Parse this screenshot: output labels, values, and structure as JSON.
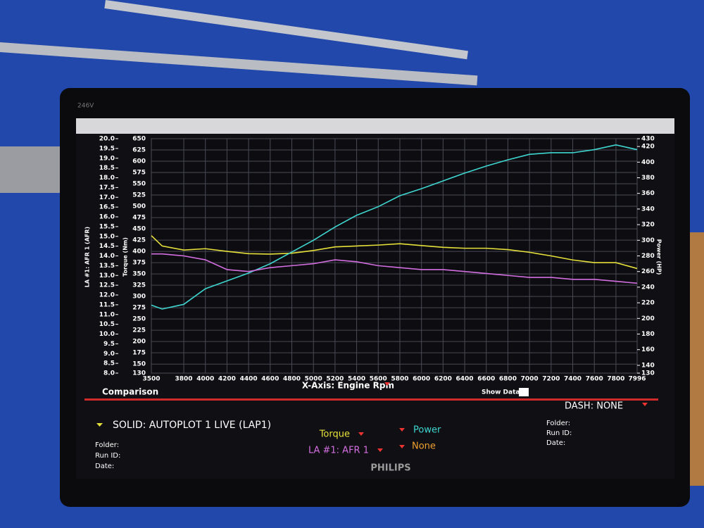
{
  "chart_data": {
    "type": "line",
    "xlabel": "X-Axis: Engine Rpm",
    "ylabel": "Torque (Nm)",
    "y2label": "Power (HP)",
    "y3label": "LA #1: AFR 1 (AFR)",
    "x": [
      3500,
      3600,
      3800,
      4000,
      4200,
      4400,
      4600,
      4800,
      5000,
      5200,
      5400,
      5600,
      5800,
      6000,
      6200,
      6400,
      6600,
      6800,
      7000,
      7200,
      7400,
      7600,
      7800,
      7996
    ],
    "xlim": [
      3500,
      7996
    ],
    "xticks": [
      3500,
      3800,
      4000,
      4200,
      4400,
      4600,
      4800,
      5000,
      5200,
      5400,
      5600,
      5800,
      6000,
      6200,
      6400,
      6600,
      6800,
      7000,
      7200,
      7400,
      7600,
      7800,
      7996
    ],
    "ylim": [
      130,
      650
    ],
    "yticks": [
      130,
      150,
      175,
      200,
      225,
      250,
      275,
      300,
      325,
      350,
      375,
      400,
      425,
      450,
      475,
      500,
      525,
      550,
      575,
      600,
      625,
      650
    ],
    "y2lim": [
      130,
      430
    ],
    "y2ticks": [
      130,
      140,
      160,
      180,
      200,
      220,
      240,
      260,
      280,
      300,
      320,
      340,
      360,
      380,
      400,
      420,
      430
    ],
    "y3lim": [
      8,
      20
    ],
    "y3ticks": [
      {
        "value": 8,
        "label": "8.0"
      },
      {
        "value": 8.5,
        "label": "8.5"
      },
      {
        "value": 9,
        "label": "9.0"
      },
      {
        "value": 9.5,
        "label": "9.5"
      },
      {
        "value": 10,
        "label": "10.0"
      },
      {
        "value": 10.5,
        "label": "10.5"
      },
      {
        "value": 11,
        "label": "11.0"
      },
      {
        "value": 11.5,
        "label": "11.5"
      },
      {
        "value": 12,
        "label": "12.0"
      },
      {
        "value": 12.5,
        "label": "12.5"
      },
      {
        "value": 13,
        "label": "13.0"
      },
      {
        "value": 13.5,
        "label": "13.5"
      },
      {
        "value": 14,
        "label": "14.0"
      },
      {
        "value": 14.5,
        "label": "14.5"
      },
      {
        "value": 15,
        "label": "15.0"
      },
      {
        "value": 15.5,
        "label": "15.5"
      },
      {
        "value": 16,
        "label": "16.0"
      },
      {
        "value": 16.5,
        "label": "16.5"
      },
      {
        "value": 17,
        "label": "17.0"
      },
      {
        "value": 17.5,
        "label": "17.5"
      },
      {
        "value": 18,
        "label": "18.0"
      },
      {
        "value": 18.5,
        "label": "18.5"
      },
      {
        "value": 19,
        "label": "19.0"
      },
      {
        "value": 19.5,
        "label": "19.5"
      },
      {
        "value": 20,
        "label": "20.0"
      }
    ],
    "grid": true,
    "series": [
      {
        "name": "Torque",
        "color": "#e6e03a",
        "axis": "y",
        "values": [
          435,
          412,
          403,
          406,
          400,
          395,
          394,
          396,
          402,
          410,
          412,
          414,
          417,
          413,
          409,
          407,
          407,
          404,
          398,
          390,
          381,
          375,
          375,
          362
        ]
      },
      {
        "name": "Power",
        "color": "#3fd6d0",
        "axis": "y2",
        "values": [
          217,
          212,
          218,
          238,
          248,
          258,
          270,
          285,
          300,
          317,
          332,
          343,
          357,
          366,
          376,
          386,
          395,
          403,
          410,
          412,
          412,
          416,
          422,
          416
        ]
      },
      {
        "name": "LA #1: AFR 1",
        "color": "#d36ee0",
        "axis": "y3",
        "values": [
          14.1,
          14.1,
          14.0,
          13.8,
          13.3,
          13.2,
          13.4,
          13.5,
          13.6,
          13.8,
          13.7,
          13.5,
          13.4,
          13.3,
          13.3,
          13.2,
          13.1,
          13.0,
          12.9,
          12.9,
          12.8,
          12.8,
          12.7,
          12.6
        ]
      }
    ]
  },
  "panel": {
    "comparison": "Comparison",
    "show_data": "Show Data",
    "dash": "DASH: NONE",
    "solid": "SOLID: AUTOPLOT 1 LIVE (LAP1)",
    "extra_channel": "None",
    "left_info": [
      "Folder:",
      "Run ID:",
      "Date:"
    ],
    "right_info": [
      "Folder:",
      "Run ID:",
      "Date:"
    ]
  },
  "monitor": {
    "brand": "PHILIPS",
    "model": "246V"
  }
}
